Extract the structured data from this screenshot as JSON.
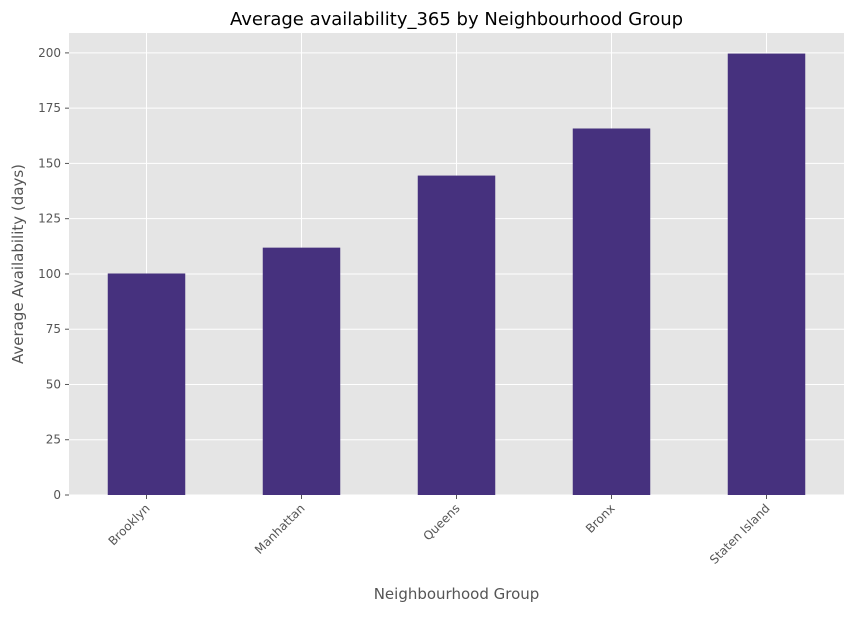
{
  "chart_data": {
    "type": "bar",
    "title": "Average availability_365 by Neighbourhood Group",
    "xlabel": "Neighbourhood Group",
    "ylabel": "Average Availability (days)",
    "categories": [
      "Brooklyn",
      "Manhattan",
      "Queens",
      "Bronx",
      "Staten Island"
    ],
    "values": [
      100.2,
      111.9,
      144.5,
      165.8,
      199.7
    ],
    "ylim": [
      0,
      209
    ],
    "yticks": [
      0,
      25,
      50,
      75,
      100,
      125,
      150,
      175,
      200
    ],
    "grid": true,
    "bar_color": "#46317e",
    "background_color": "#e5e5e5",
    "grid_color": "#ffffff"
  }
}
